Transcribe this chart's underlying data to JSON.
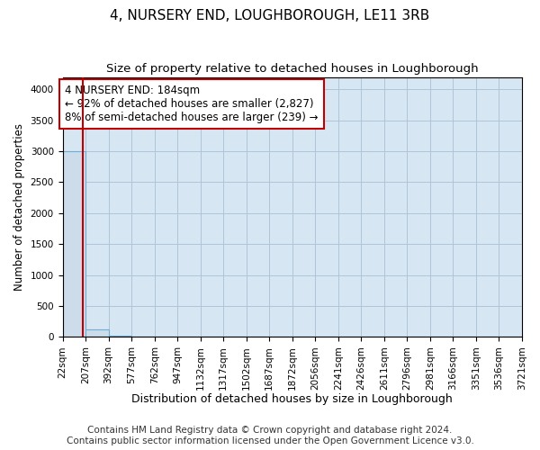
{
  "title": "4, NURSERY END, LOUGHBOROUGH, LE11 3RB",
  "subtitle": "Size of property relative to detached houses in Loughborough",
  "xlabel": "Distribution of detached houses by size in Loughborough",
  "ylabel": "Number of detached properties",
  "footer_line1": "Contains HM Land Registry data © Crown copyright and database right 2024.",
  "footer_line2": "Contains public sector information licensed under the Open Government Licence v3.0.",
  "bin_edges": [
    22,
    207,
    392,
    577,
    762,
    947,
    1132,
    1317,
    1502,
    1687,
    1872,
    2056,
    2241,
    2426,
    2611,
    2796,
    2981,
    3166,
    3351,
    3536,
    3721
  ],
  "bar_heights": [
    3000,
    120,
    15,
    5,
    4,
    3,
    2,
    2,
    2,
    1,
    1,
    1,
    1,
    1,
    1,
    1,
    1,
    1,
    1,
    1
  ],
  "bar_color": "#cddceb",
  "bar_edge_color": "#6baed6",
  "property_size": 184,
  "property_line_color": "#c00000",
  "annotation_line1": "4 NURSERY END: 184sqm",
  "annotation_line2": "← 92% of detached houses are smaller (2,827)",
  "annotation_line3": "8% of semi-detached houses are larger (239) →",
  "annotation_box_color": "#c00000",
  "ylim": [
    0,
    4200
  ],
  "yticks": [
    0,
    500,
    1000,
    1500,
    2000,
    2500,
    3000,
    3500,
    4000
  ],
  "grid_color": "#b0c4d8",
  "plot_bg_color": "#d6e6f2",
  "title_fontsize": 11,
  "subtitle_fontsize": 9.5,
  "xlabel_fontsize": 9,
  "ylabel_fontsize": 8.5,
  "tick_fontsize": 7.5,
  "annotation_fontsize": 8.5,
  "footer_fontsize": 7.5
}
